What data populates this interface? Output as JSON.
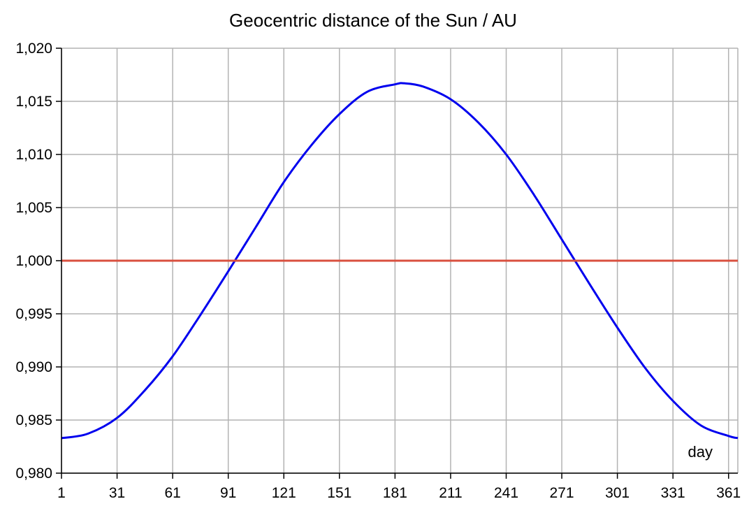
{
  "chart_data": {
    "type": "line",
    "title": "Geocentric distance of the Sun / AU",
    "xlabel": "day",
    "ylabel": "",
    "xlim": [
      1,
      366
    ],
    "ylim": [
      0.98,
      1.02
    ],
    "x_ticks": [
      1,
      31,
      61,
      91,
      121,
      151,
      181,
      211,
      241,
      271,
      301,
      331,
      361
    ],
    "x_tick_labels": [
      "1",
      "31",
      "61",
      "91",
      "121",
      "151",
      "181",
      "211",
      "241",
      "271",
      "301",
      "331",
      "361"
    ],
    "y_ticks": [
      0.98,
      0.985,
      0.99,
      0.995,
      1.0,
      1.005,
      1.01,
      1.015,
      1.02
    ],
    "y_tick_labels": [
      "0,980",
      "0,985",
      "0,990",
      "0,995",
      "1,000",
      "1,005",
      "1,010",
      "1,015",
      "1,020"
    ],
    "grid": true,
    "colors": {
      "distance": "#0000ee",
      "reference": "#d9503f",
      "grid": "#b3b3b3",
      "axis": "#000000"
    },
    "series": [
      {
        "values_description_key": "distance",
        "x": [
          1,
          15,
          31,
          46,
          61,
          76,
          91,
          106,
          121,
          136,
          151,
          166,
          181,
          186,
          196,
          211,
          226,
          241,
          256,
          271,
          286,
          301,
          316,
          331,
          346,
          361,
          366
        ],
        "y": [
          0.9833,
          0.9837,
          0.9852,
          0.9878,
          0.991,
          0.9949,
          0.999,
          1.0032,
          1.0074,
          1.0109,
          1.0138,
          1.0159,
          1.0166,
          1.0167,
          1.0164,
          1.0152,
          1.013,
          1.01,
          1.0062,
          1.002,
          0.9978,
          0.9937,
          0.9899,
          0.9868,
          0.9845,
          0.9835,
          0.9833
        ]
      },
      {
        "values_description_key": "reference",
        "x": [
          1,
          366
        ],
        "y": [
          1.0,
          1.0
        ]
      }
    ]
  }
}
